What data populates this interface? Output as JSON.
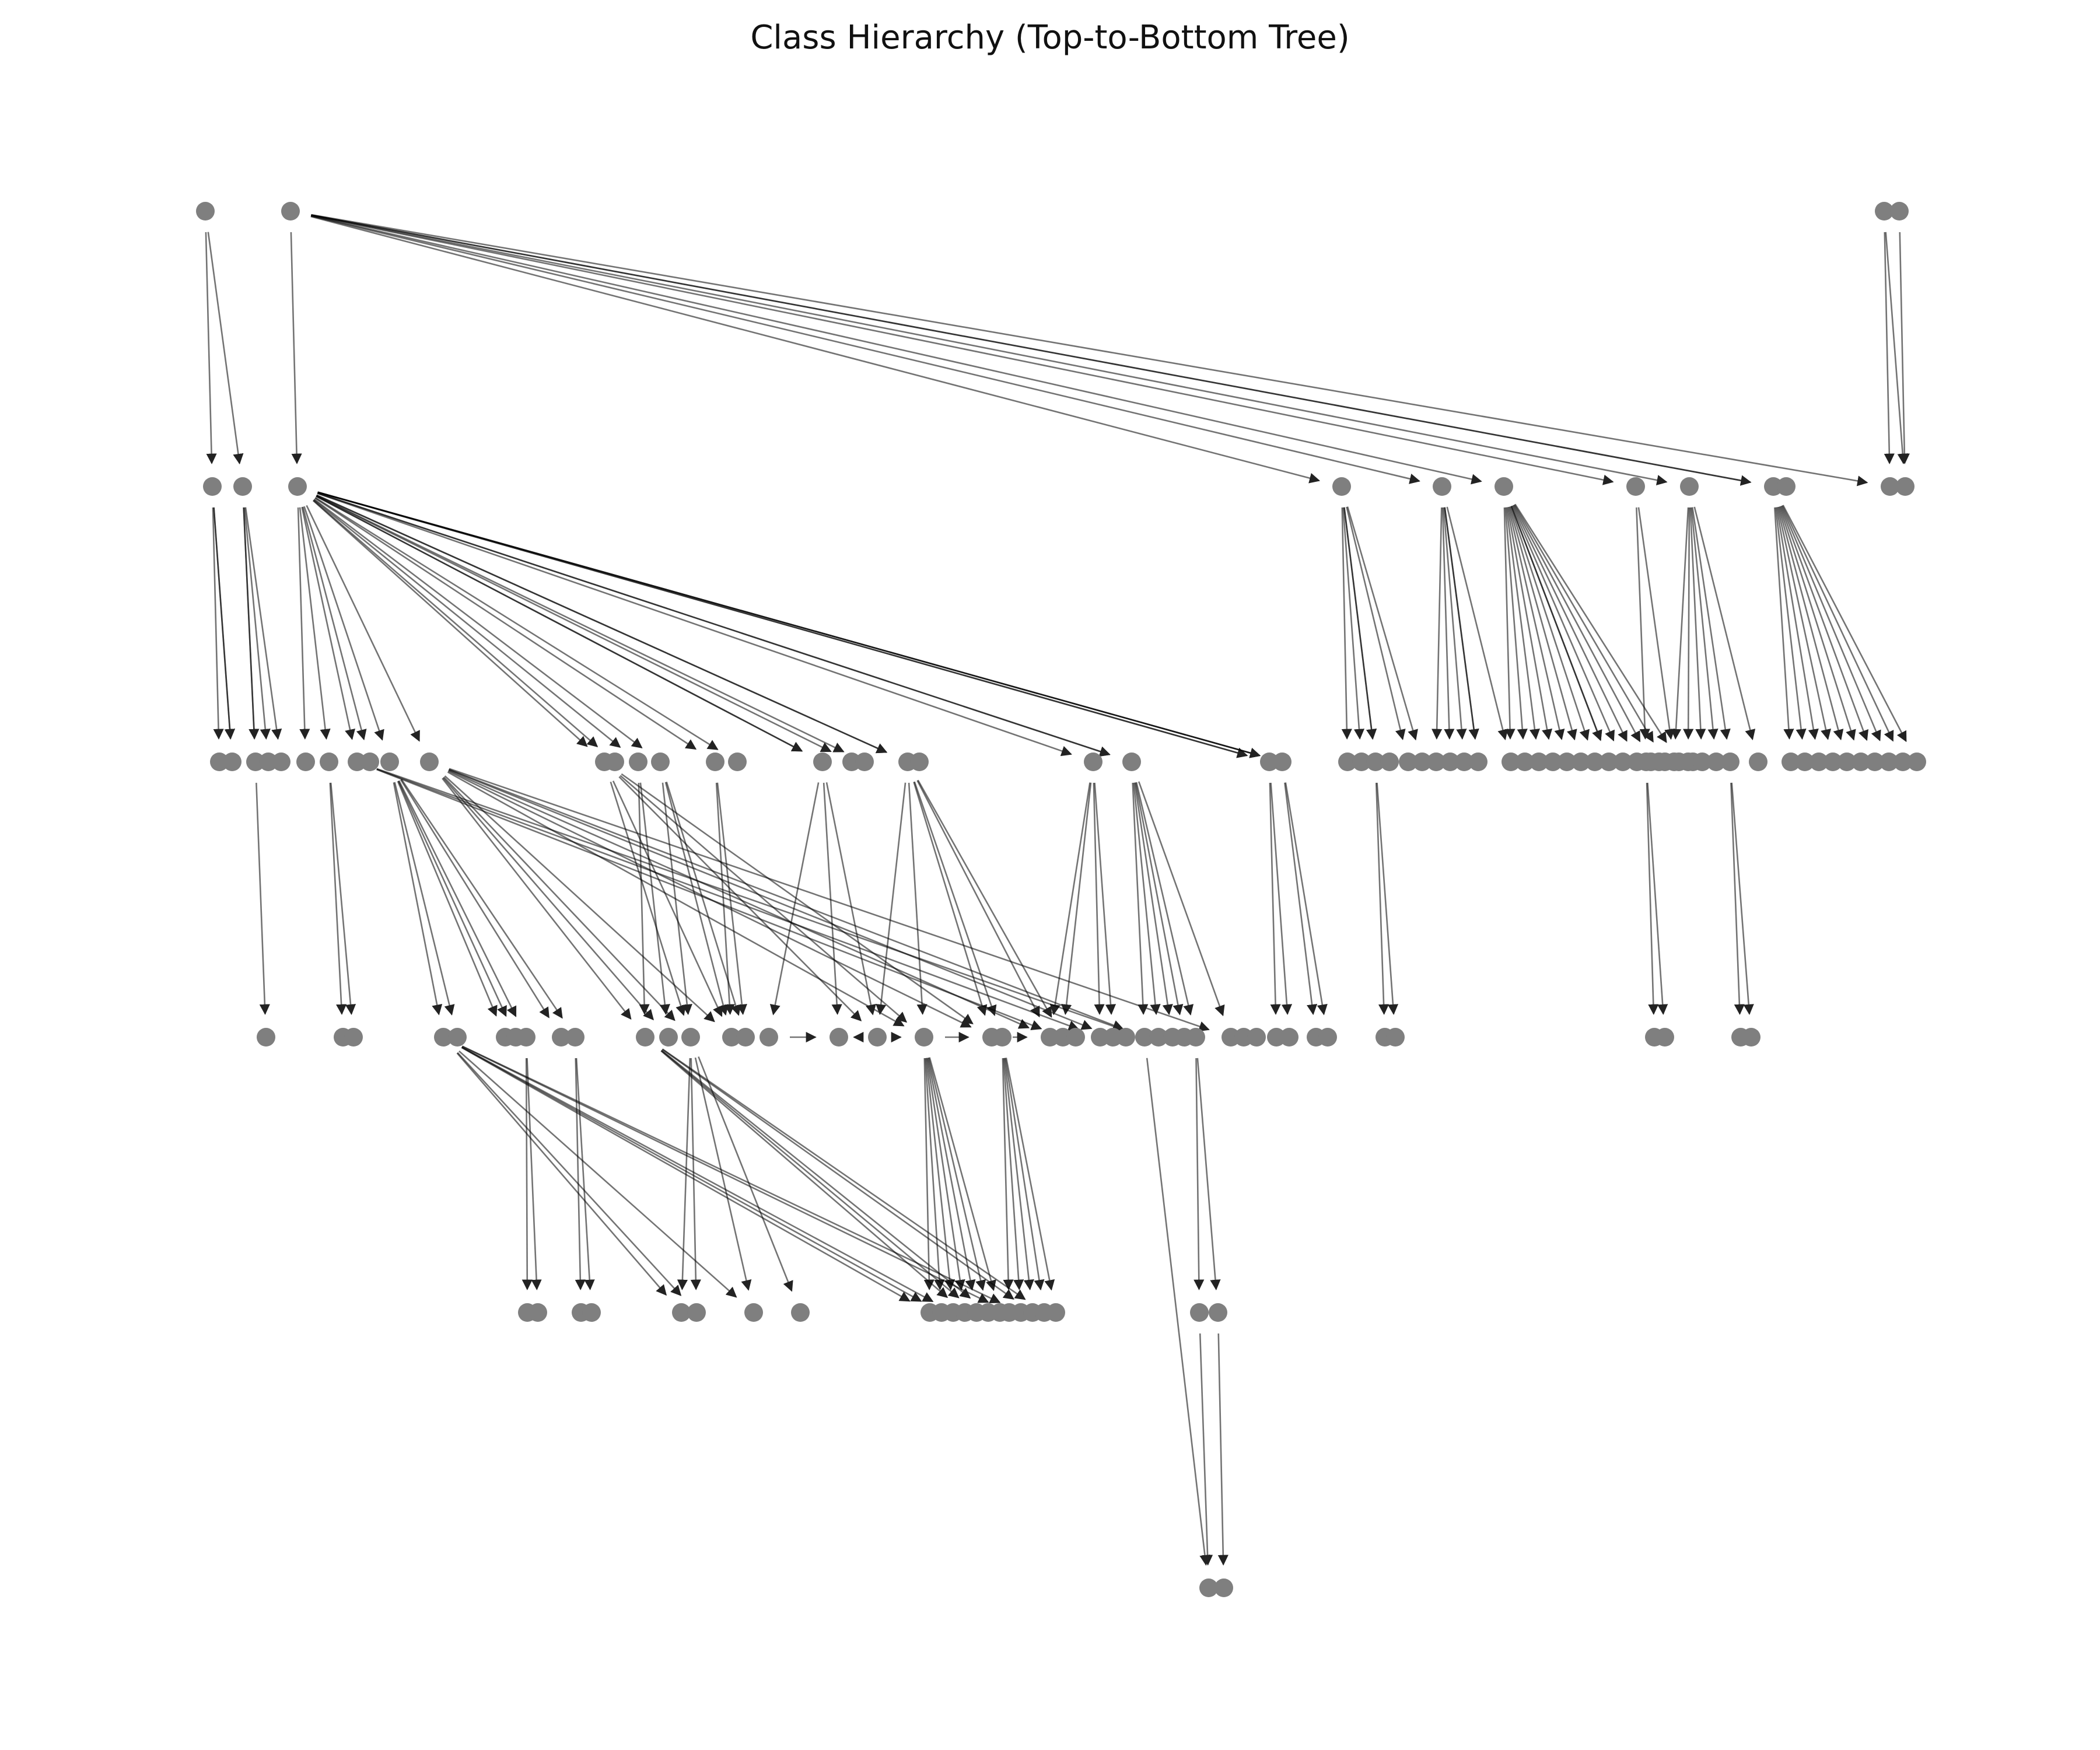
{
  "title": "Class Hierarchy (Top-to-Bottom Tree)",
  "colors": {
    "node": "#7f7f7f",
    "edge": "#000000",
    "background": "#ffffff"
  },
  "graph": {
    "levels": [
      {
        "level": 0,
        "groups": [
          [
            1
          ],
          [
            1
          ],
          [
            2
          ]
        ]
      },
      {
        "level": 1,
        "groups": [
          [
            1
          ],
          [
            1
          ],
          [
            1
          ],
          [
            1
          ],
          [
            1
          ],
          [
            1
          ],
          [
            1
          ],
          [
            1
          ],
          [
            2
          ],
          [
            2
          ]
        ]
      },
      {
        "level": 2,
        "groups": [
          [
            2
          ],
          [
            3
          ],
          [
            1
          ],
          [
            1
          ],
          [
            2
          ],
          [
            1
          ],
          [
            1
          ],
          [
            2
          ],
          [
            1
          ],
          [
            1
          ],
          [
            1
          ],
          [
            1
          ],
          [
            2
          ],
          [
            2
          ],
          [
            1
          ],
          [
            1
          ],
          [
            1
          ],
          [
            2
          ],
          [
            4
          ],
          [
            6
          ],
          [
            14
          ],
          [
            2
          ],
          [
            2
          ],
          [
            5
          ],
          [
            1
          ],
          [
            10
          ]
        ]
      },
      {
        "level": 3,
        "groups": [
          [
            1
          ],
          [
            2
          ],
          [
            2
          ],
          [
            3
          ],
          [
            2
          ],
          [
            1
          ],
          [
            1
          ],
          [
            1
          ],
          [
            2
          ],
          [
            1
          ],
          [
            1
          ],
          [
            1
          ],
          [
            1
          ],
          [
            2
          ],
          [
            3
          ],
          [
            3
          ],
          [
            2
          ],
          [
            3
          ],
          [
            3
          ],
          [
            2
          ],
          [
            3
          ],
          [
            2
          ],
          [
            2
          ],
          [
            2
          ]
        ]
      },
      {
        "level": 4,
        "groups": [
          [
            2
          ],
          [
            2
          ],
          [
            2
          ],
          [
            1
          ],
          [
            1
          ],
          [
            7
          ],
          [
            5
          ],
          [
            2
          ]
        ]
      },
      {
        "level": 5,
        "groups": [
          [
            2
          ]
        ]
      }
    ],
    "fan_out": [
      {
        "parent": "L0-a",
        "children": 2
      },
      {
        "parent": "L0-b",
        "children": 10
      },
      {
        "parent": "L0-c",
        "children": 2
      },
      {
        "parent": "L1-a",
        "children": 3
      },
      {
        "parent": "L1-b",
        "children": 4
      },
      {
        "parent": "L1-c",
        "children": 26
      },
      {
        "parent": "L1-d",
        "children": 6
      },
      {
        "parent": "L1-e",
        "children": 6
      },
      {
        "parent": "L1-f",
        "children": 14
      },
      {
        "parent": "L1-g",
        "children": 2
      },
      {
        "parent": "L1-h",
        "children": 6
      },
      {
        "parent": "L1-i",
        "children": 10
      }
    ]
  }
}
